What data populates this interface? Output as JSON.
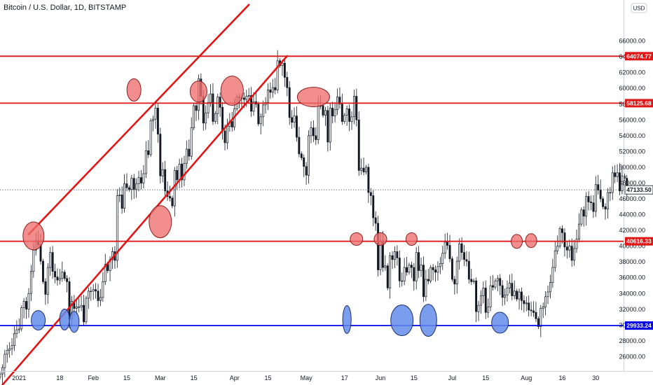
{
  "legend": "Bitcoin / U.S. Dollar, 1D, BITSTAMP",
  "currency_badge": "USD",
  "colors": {
    "up": "#131722",
    "down": "#131722",
    "wick": "#131722",
    "red_line": "#e01616",
    "blue_line": "#0000e6",
    "red_marker_fill": "rgba(240,110,110,0.78)",
    "red_marker_stroke": "#8a2020",
    "blue_marker_fill": "rgba(100,140,235,0.85)",
    "blue_marker_stroke": "#1d2e6e",
    "grid_text": "#131722"
  },
  "chart_data": {
    "type": "candlestick",
    "title": "Bitcoin / U.S. Dollar, 1D, BITSTAMP",
    "y_axis": {
      "ylim": [
        22400,
        71200
      ],
      "ticks": [
        24000,
        26000,
        28000,
        30000,
        32000,
        34000,
        36000,
        38000,
        40000,
        42000,
        44000,
        46000,
        48000,
        50000,
        52000,
        54000,
        56000,
        58000,
        60000,
        62000,
        64000,
        66000
      ],
      "tick_labels": [
        "24000.00",
        "26000.00",
        "28000.00",
        "30000.00",
        "32000.00",
        "34000.00",
        "36000.00",
        "38000.00",
        "40000.00",
        "42000.00",
        "44000.00",
        "46000.00",
        "48000.00",
        "50000.00",
        "52000.00",
        "54000.00",
        "56000.00",
        "58000.00",
        "60000.00",
        "62000.00",
        "64000.00",
        "66000.00"
      ]
    },
    "x_axis": {
      "start_date": "2020-12-24",
      "end_date": "2021-08-30",
      "ticks": [
        {
          "date": "2021-01-01",
          "label": "2021"
        },
        {
          "date": "2021-01-18",
          "label": "18"
        },
        {
          "date": "2021-02-01",
          "label": "Feb"
        },
        {
          "date": "2021-02-15",
          "label": "15"
        },
        {
          "date": "2021-03-01",
          "label": "Mar"
        },
        {
          "date": "2021-03-15",
          "label": "15"
        },
        {
          "date": "2021-04-01",
          "label": "Apr"
        },
        {
          "date": "2021-04-15",
          "label": "15"
        },
        {
          "date": "2021-05-01",
          "label": "May"
        },
        {
          "date": "2021-05-17",
          "label": "17"
        },
        {
          "date": "2021-06-01",
          "label": "Jun"
        },
        {
          "date": "2021-06-15",
          "label": "15"
        },
        {
          "date": "2021-07-01",
          "label": "Jul"
        },
        {
          "date": "2021-07-15",
          "label": "15"
        },
        {
          "date": "2021-08-01",
          "label": "Aug"
        },
        {
          "date": "2021-08-16",
          "label": "16"
        },
        {
          "date": "2021-08-30",
          "label": "30"
        }
      ]
    },
    "candles": {
      "start_date": "2020-12-24",
      "close": [
        23800,
        24600,
        26300,
        26800,
        27000,
        27400,
        28900,
        29400,
        29500,
        32200,
        33000,
        32000,
        34000,
        36800,
        39500,
        40700,
        40200,
        38100,
        35500,
        33900,
        37300,
        39200,
        36800,
        36100,
        35700,
        35900,
        36700,
        35900,
        35500,
        30800,
        33000,
        32100,
        32300,
        32300,
        32500,
        30400,
        33400,
        34300,
        34300,
        34500,
        34300,
        33100,
        33500,
        35500,
        37700,
        36900,
        38300,
        39300,
        38200,
        46400,
        46500,
        44800,
        47900,
        47400,
        47200,
        48600,
        47200,
        47900,
        48700,
        48000,
        49200,
        52100,
        51600,
        55900,
        56100,
        57500,
        54200,
        48900,
        49700,
        47000,
        46300,
        46100,
        45100,
        49600,
        48400,
        50400,
        48400,
        50500,
        52300,
        51400,
        55000,
        57800,
        57200,
        61200,
        59000,
        55600,
        56900,
        58200,
        59300,
        55800,
        56800,
        58900,
        57600,
        54600,
        53100,
        55200,
        55800,
        55100,
        57400,
        58900,
        58800,
        58800,
        58600,
        59000,
        59100,
        57100,
        58300,
        58000,
        55500,
        56400,
        57900,
        58200,
        59800,
        59500,
        60100,
        59800,
        63500,
        62900,
        63200,
        61400,
        60100,
        56300,
        55700,
        56500,
        53800,
        51700,
        51200,
        50100,
        49000,
        54000,
        55000,
        54000,
        53500,
        57800,
        57800,
        56600,
        57200,
        53200,
        57500,
        56500,
        57300,
        58900,
        58000,
        55800,
        56600,
        57400,
        55800,
        56400,
        59000,
        56000,
        49600,
        49900,
        49400,
        50000,
        46800,
        46400,
        43600,
        42900,
        37000,
        40700,
        37300,
        37500,
        34700,
        38800,
        38300,
        39300,
        38500,
        35600,
        35600,
        37300,
        36700,
        37600,
        37300,
        35600,
        39200,
        36900,
        37600,
        33600,
        35800,
        35600,
        37300,
        37000,
        36700,
        37400,
        37800,
        39100,
        40500,
        40100,
        38400,
        35800,
        35200,
        38100,
        40300,
        39200,
        38300,
        38100,
        35800,
        35500,
        35600,
        31700,
        32500,
        33700,
        34700,
        31600,
        32300,
        35000,
        34800,
        35600,
        35900,
        35000,
        33500,
        33800,
        34700,
        35300,
        33700,
        34300,
        33300,
        34200,
        33100,
        32700,
        32800,
        31900,
        31800,
        31600,
        30800,
        29800,
        32100,
        32300,
        33600,
        34200,
        35400,
        37300,
        39400,
        40000,
        42200,
        41700,
        39900,
        39500,
        40000,
        38200,
        39700,
        40900,
        42800,
        44600,
        43800,
        46300,
        45600,
        45500,
        44400,
        47800,
        47100,
        46000,
        45000,
        44700,
        46800,
        46800,
        49300,
        48800,
        49300,
        47000,
        48900,
        48600,
        47100
      ]
    },
    "horizontal_levels": [
      {
        "value": 64074.77,
        "label": "64074.77",
        "color": "#e01616"
      },
      {
        "value": 58125.68,
        "label": "58125.68",
        "color": "#e01616"
      },
      {
        "value": 40616.33,
        "label": "40616.33",
        "color": "#e01616"
      },
      {
        "value": 29933.24,
        "label": "29933.24",
        "color": "#0000e6"
      }
    ],
    "current_price": {
      "value": 47133.5,
      "label": "47133.50"
    },
    "trend_channel": [
      {
        "from": {
          "date": "2021-01-05",
          "value": 41500
        },
        "to": {
          "date": "2021-04-07",
          "value": 70600
        }
      },
      {
        "from": {
          "date": "2020-12-25",
          "value": 22400
        },
        "to": {
          "date": "2021-04-23",
          "value": 64100
        }
      }
    ],
    "markers": [
      {
        "type": "red",
        "date": "2021-01-07",
        "value": 41300,
        "rx": 15,
        "ry": 20
      },
      {
        "type": "red",
        "date": "2021-02-18",
        "value": 59800,
        "rx": 10,
        "ry": 16
      },
      {
        "type": "red",
        "date": "2021-03-01",
        "value": 43100,
        "rx": 16,
        "ry": 23
      },
      {
        "type": "red",
        "date": "2021-03-17",
        "value": 59600,
        "rx": 12,
        "ry": 15
      },
      {
        "type": "red",
        "date": "2021-03-31",
        "value": 59700,
        "rx": 16,
        "ry": 21
      },
      {
        "type": "red",
        "date": "2021-05-04",
        "value": 58900,
        "rx": 23,
        "ry": 14
      },
      {
        "type": "red",
        "date": "2021-05-22",
        "value": 40900,
        "rx": 9,
        "ry": 9
      },
      {
        "type": "red",
        "date": "2021-06-01",
        "value": 40900,
        "rx": 9,
        "ry": 9
      },
      {
        "type": "red",
        "date": "2021-06-14",
        "value": 40900,
        "rx": 8,
        "ry": 9
      },
      {
        "type": "red",
        "date": "2021-07-28",
        "value": 40600,
        "rx": 8,
        "ry": 10
      },
      {
        "type": "red",
        "date": "2021-08-03",
        "value": 40700,
        "rx": 8,
        "ry": 10
      },
      {
        "type": "blue",
        "date": "2021-01-09",
        "value": 30600,
        "rx": 10,
        "ry": 14
      },
      {
        "type": "blue",
        "date": "2021-01-20",
        "value": 30700,
        "rx": 7,
        "ry": 15
      },
      {
        "type": "blue",
        "date": "2021-01-24",
        "value": 30400,
        "rx": 7,
        "ry": 15
      },
      {
        "type": "blue",
        "date": "2021-05-18",
        "value": 30700,
        "rx": 6,
        "ry": 20
      },
      {
        "type": "blue",
        "date": "2021-06-10",
        "value": 30600,
        "rx": 16,
        "ry": 22
      },
      {
        "type": "blue",
        "date": "2021-06-21",
        "value": 30600,
        "rx": 12,
        "ry": 23
      },
      {
        "type": "blue",
        "date": "2021-07-21",
        "value": 30300,
        "rx": 12,
        "ry": 15
      }
    ]
  }
}
